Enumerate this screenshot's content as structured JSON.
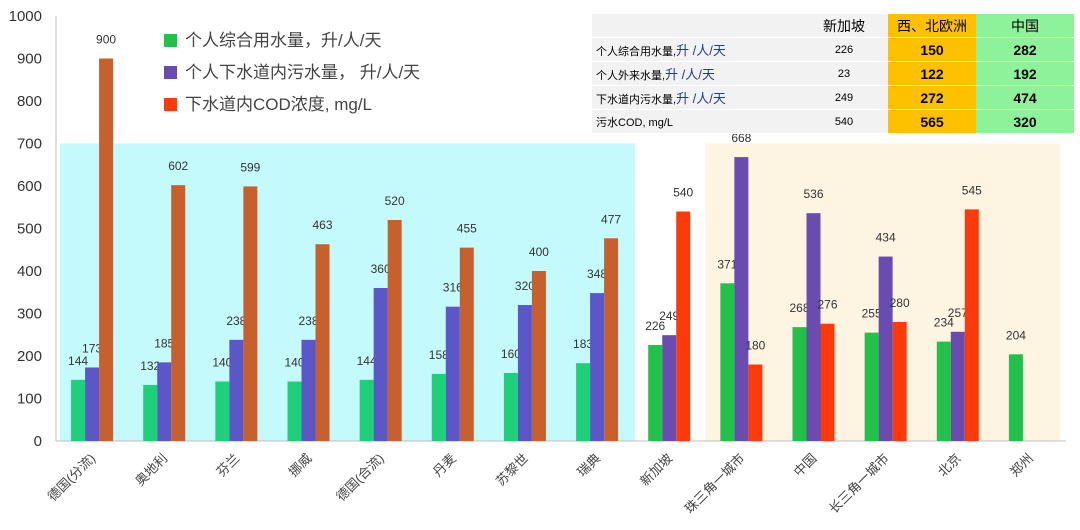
{
  "chart_data": {
    "type": "bar",
    "categories": [
      "德国(分流)",
      "奥地利",
      "芬兰",
      "挪威",
      "德国(合流)",
      "丹麦",
      "苏黎世",
      "瑞典",
      "新加坡",
      "珠三角一城市",
      "中国",
      "长三角一城市",
      "北京",
      "郑州"
    ],
    "series": [
      {
        "name": "个人综合用水量，升/人/天",
        "color": "#22c24a",
        "values": [
          144,
          132,
          140,
          140,
          144,
          158,
          160,
          183,
          226,
          371,
          268,
          255,
          234,
          204
        ]
      },
      {
        "name": "个人下水道内污水量， 升/人/天",
        "color": "#6a4bb0",
        "values": [
          173,
          185,
          238,
          238,
          360,
          316,
          320,
          348,
          249,
          668,
          536,
          434,
          257,
          null
        ]
      },
      {
        "name": "下水道内COD浓度, mg/L",
        "color": "#ff3a0a",
        "values": [
          900,
          602,
          599,
          463,
          520,
          455,
          400,
          477,
          540,
          180,
          276,
          280,
          545,
          null
        ]
      }
    ],
    "ylim": [
      0,
      1000
    ],
    "yticks": [
      0,
      100,
      200,
      300,
      400,
      500,
      600,
      700,
      800,
      900,
      1000
    ],
    "xlabel": "",
    "ylabel": "",
    "legend_position": "top-left",
    "grid": false,
    "region_colors": {
      "europe": "#c4fafc",
      "asia": "#fdf4e2"
    }
  },
  "summary_table": {
    "header": [
      "",
      "新加坡",
      "西、北欧洲",
      "中国"
    ],
    "rows": [
      {
        "label": "个人综合用水量,",
        "unit": "升 /人/天",
        "values": [
          "226",
          "150",
          "282"
        ]
      },
      {
        "label": "个人外来水量,",
        "unit": "升 /人/天",
        "values": [
          "23",
          "122",
          "192"
        ]
      },
      {
        "label": "下水道内污水量,",
        "unit": "升 /人/天",
        "values": [
          "249",
          "272",
          "474"
        ]
      },
      {
        "label": "污水COD, mg/L",
        "unit": "",
        "values": [
          "540",
          "565",
          "320"
        ]
      }
    ]
  }
}
